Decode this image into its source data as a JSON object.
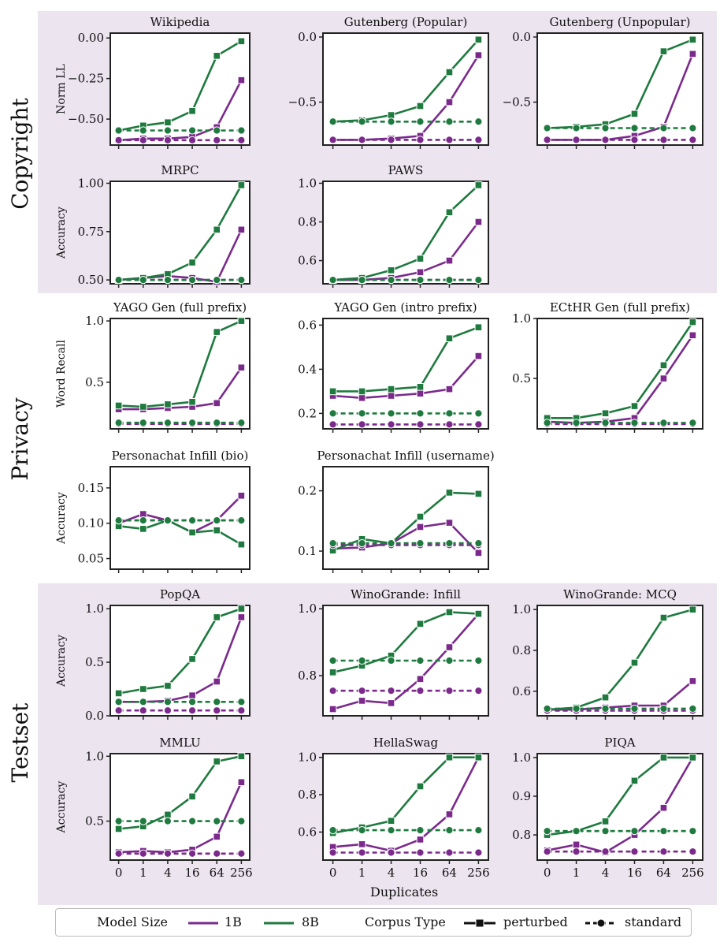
{
  "colors": {
    "1B": "#7b2a8c",
    "8B": "#1e7a3e",
    "section_bg": "#ece4ef"
  },
  "x_ticks": [
    "0",
    "1",
    "4",
    "16",
    "64",
    "256"
  ],
  "x_axis_label": "Duplicates",
  "sections": [
    "Copyright",
    "Privacy",
    "Testset"
  ],
  "legend": {
    "model_size_title": "Model Size",
    "model_sizes": [
      "1B",
      "8B"
    ],
    "corpus_type_title": "Corpus Type",
    "corpus_types": [
      "perturbed",
      "standard"
    ]
  },
  "chart_data": [
    {
      "type": "line",
      "title": "Wikipedia",
      "ylabel": "Norm LL",
      "ylim": [
        -0.66,
        0.03
      ],
      "yticks": [
        0.0,
        -0.25,
        -0.5
      ],
      "ytick_labels": [
        "0.00",
        "−0.25",
        "−0.50"
      ],
      "series": [
        {
          "name": "1B perturbed",
          "values": [
            -0.63,
            -0.62,
            -0.62,
            -0.61,
            -0.55,
            -0.26
          ]
        },
        {
          "name": "8B perturbed",
          "values": [
            -0.57,
            -0.54,
            -0.52,
            -0.45,
            -0.11,
            -0.02
          ]
        },
        {
          "name": "1B standard",
          "values": [
            -0.63,
            -0.63,
            -0.63,
            -0.63,
            -0.63,
            -0.63
          ]
        },
        {
          "name": "8B standard",
          "values": [
            -0.57,
            -0.57,
            -0.57,
            -0.57,
            -0.57,
            -0.57
          ]
        }
      ]
    },
    {
      "type": "line",
      "title": "Gutenberg (Popular)",
      "ylabel": "",
      "ylim": [
        -0.83,
        0.03
      ],
      "yticks": [
        0.0,
        -0.5
      ],
      "ytick_labels": [
        "0.0",
        "−0.5"
      ],
      "series": [
        {
          "name": "1B perturbed",
          "values": [
            -0.79,
            -0.79,
            -0.78,
            -0.76,
            -0.5,
            -0.14
          ]
        },
        {
          "name": "8B perturbed",
          "values": [
            -0.65,
            -0.64,
            -0.6,
            -0.53,
            -0.27,
            -0.02
          ]
        },
        {
          "name": "1B standard",
          "values": [
            -0.79,
            -0.79,
            -0.79,
            -0.79,
            -0.79,
            -0.79
          ]
        },
        {
          "name": "8B standard",
          "values": [
            -0.65,
            -0.65,
            -0.65,
            -0.65,
            -0.65,
            -0.65
          ]
        }
      ]
    },
    {
      "type": "line",
      "title": "Gutenberg (Unpopular)",
      "ylabel": "",
      "ylim": [
        -0.83,
        0.03
      ],
      "yticks": [
        0.0,
        -0.5
      ],
      "ytick_labels": [
        "0.0",
        "−0.5"
      ],
      "series": [
        {
          "name": "1B perturbed",
          "values": [
            -0.79,
            -0.79,
            -0.79,
            -0.76,
            -0.69,
            -0.13
          ]
        },
        {
          "name": "8B perturbed",
          "values": [
            -0.7,
            -0.69,
            -0.67,
            -0.59,
            -0.11,
            -0.02
          ]
        },
        {
          "name": "1B standard",
          "values": [
            -0.79,
            -0.79,
            -0.79,
            -0.79,
            -0.79,
            -0.79
          ]
        },
        {
          "name": "8B standard",
          "values": [
            -0.7,
            -0.7,
            -0.7,
            -0.7,
            -0.7,
            -0.7
          ]
        }
      ]
    },
    {
      "type": "line",
      "title": "MRPC",
      "ylabel": "Accuracy",
      "ylim": [
        0.48,
        1.01
      ],
      "yticks": [
        1.0,
        0.75,
        0.5
      ],
      "ytick_labels": [
        "1.00",
        "0.75",
        "0.50"
      ],
      "series": [
        {
          "name": "1B perturbed",
          "values": [
            0.5,
            0.51,
            0.52,
            0.51,
            0.49,
            0.76
          ]
        },
        {
          "name": "8B perturbed",
          "values": [
            0.5,
            0.51,
            0.53,
            0.59,
            0.76,
            0.99
          ]
        },
        {
          "name": "1B standard",
          "values": [
            0.5,
            0.5,
            0.5,
            0.5,
            0.5,
            0.5
          ]
        },
        {
          "name": "8B standard",
          "values": [
            0.5,
            0.5,
            0.5,
            0.5,
            0.5,
            0.5
          ]
        }
      ]
    },
    {
      "type": "line",
      "title": "PAWS",
      "ylabel": "",
      "ylim": [
        0.48,
        1.01
      ],
      "yticks": [
        1.0,
        0.8,
        0.6
      ],
      "ytick_labels": [
        "1.0",
        "0.8",
        "0.6"
      ],
      "series": [
        {
          "name": "1B perturbed",
          "values": [
            0.5,
            0.5,
            0.51,
            0.54,
            0.6,
            0.8
          ]
        },
        {
          "name": "8B perturbed",
          "values": [
            0.5,
            0.51,
            0.55,
            0.61,
            0.85,
            0.99
          ]
        },
        {
          "name": "1B standard",
          "values": [
            0.5,
            0.5,
            0.5,
            0.5,
            0.5,
            0.5
          ]
        },
        {
          "name": "8B standard",
          "values": [
            0.5,
            0.5,
            0.5,
            0.5,
            0.5,
            0.5
          ]
        }
      ]
    },
    {
      "type": "line",
      "title": "YAGO Gen (full prefix)",
      "ylabel": "Word Recall",
      "ylim": [
        0.12,
        1.02
      ],
      "yticks": [
        1.0,
        0.5
      ],
      "ytick_labels": [
        "1.0",
        "0.5"
      ],
      "series": [
        {
          "name": "1B perturbed",
          "values": [
            0.28,
            0.28,
            0.29,
            0.3,
            0.33,
            0.62
          ]
        },
        {
          "name": "8B perturbed",
          "values": [
            0.31,
            0.3,
            0.32,
            0.34,
            0.91,
            1.0
          ]
        },
        {
          "name": "1B standard",
          "values": [
            0.16,
            0.16,
            0.16,
            0.16,
            0.16,
            0.16
          ]
        },
        {
          "name": "8B standard",
          "values": [
            0.17,
            0.17,
            0.17,
            0.17,
            0.17,
            0.17
          ]
        }
      ]
    },
    {
      "type": "line",
      "title": "YAGO Gen (intro prefix)",
      "ylabel": "",
      "ylim": [
        0.13,
        0.63
      ],
      "yticks": [
        0.6,
        0.4,
        0.2
      ],
      "ytick_labels": [
        "0.6",
        "0.4",
        "0.2"
      ],
      "series": [
        {
          "name": "1B perturbed",
          "values": [
            0.28,
            0.27,
            0.28,
            0.29,
            0.31,
            0.46
          ]
        },
        {
          "name": "8B perturbed",
          "values": [
            0.3,
            0.3,
            0.31,
            0.32,
            0.54,
            0.59
          ]
        },
        {
          "name": "1B standard",
          "values": [
            0.15,
            0.15,
            0.15,
            0.15,
            0.15,
            0.15
          ]
        },
        {
          "name": "8B standard",
          "values": [
            0.2,
            0.2,
            0.2,
            0.2,
            0.2,
            0.2
          ]
        }
      ]
    },
    {
      "type": "line",
      "title": "ECtHR Gen (full prefix)",
      "ylabel": "",
      "ylim": [
        0.08,
        1.0
      ],
      "yticks": [
        1.0,
        0.5
      ],
      "ytick_labels": [
        "1.0",
        "0.5"
      ],
      "series": [
        {
          "name": "1B perturbed",
          "values": [
            0.14,
            0.13,
            0.14,
            0.17,
            0.5,
            0.86
          ]
        },
        {
          "name": "8B perturbed",
          "values": [
            0.17,
            0.17,
            0.21,
            0.27,
            0.61,
            0.97
          ]
        },
        {
          "name": "1B standard",
          "values": [
            0.12,
            0.12,
            0.12,
            0.12,
            0.12,
            0.12
          ]
        },
        {
          "name": "8B standard",
          "values": [
            0.13,
            0.13,
            0.13,
            0.13,
            0.13,
            0.13
          ]
        }
      ]
    },
    {
      "type": "line",
      "title": "Personachat Infill (bio)",
      "ylabel": "Accuracy",
      "ylim": [
        0.035,
        0.18
      ],
      "yticks": [
        0.15,
        0.1,
        0.05
      ],
      "ytick_labels": [
        "0.15",
        "0.10",
        "0.05"
      ],
      "series": [
        {
          "name": "1B perturbed",
          "values": [
            0.1,
            0.113,
            0.104,
            0.087,
            0.104,
            0.139
          ]
        },
        {
          "name": "8B perturbed",
          "values": [
            0.096,
            0.092,
            0.104,
            0.087,
            0.09,
            0.07
          ]
        },
        {
          "name": "1B standard",
          "values": [
            0.104,
            0.104,
            0.104,
            0.104,
            0.104,
            0.104
          ]
        },
        {
          "name": "8B standard",
          "values": [
            0.104,
            0.104,
            0.104,
            0.104,
            0.104,
            0.104
          ]
        }
      ]
    },
    {
      "type": "line",
      "title": "Personachat Infill (username)",
      "ylabel": "",
      "ylim": [
        0.07,
        0.24
      ],
      "yticks": [
        0.2,
        0.1
      ],
      "ytick_labels": [
        "0.2",
        "0.1"
      ],
      "series": [
        {
          "name": "1B perturbed",
          "values": [
            0.104,
            0.106,
            0.113,
            0.14,
            0.147,
            0.097
          ]
        },
        {
          "name": "8B perturbed",
          "values": [
            0.101,
            0.12,
            0.113,
            0.157,
            0.197,
            0.195
          ]
        },
        {
          "name": "1B standard",
          "values": [
            0.11,
            0.11,
            0.11,
            0.11,
            0.11,
            0.11
          ]
        },
        {
          "name": "8B standard",
          "values": [
            0.113,
            0.113,
            0.113,
            0.113,
            0.113,
            0.113
          ]
        }
      ]
    },
    {
      "type": "line",
      "title": "PopQA",
      "ylabel": "Accuracy",
      "ylim": [
        0.0,
        1.03
      ],
      "yticks": [
        1.0,
        0.5,
        0.0
      ],
      "ytick_labels": [
        "1.0",
        "0.5",
        "0.0"
      ],
      "series": [
        {
          "name": "1B perturbed",
          "values": [
            0.13,
            0.13,
            0.14,
            0.19,
            0.32,
            0.92
          ]
        },
        {
          "name": "8B perturbed",
          "values": [
            0.21,
            0.25,
            0.28,
            0.53,
            0.92,
            1.0
          ]
        },
        {
          "name": "1B standard",
          "values": [
            0.05,
            0.05,
            0.05,
            0.05,
            0.05,
            0.05
          ]
        },
        {
          "name": "8B standard",
          "values": [
            0.13,
            0.13,
            0.13,
            0.13,
            0.13,
            0.13
          ]
        }
      ]
    },
    {
      "type": "line",
      "title": "WinoGrande: Infill",
      "ylabel": "",
      "ylim": [
        0.68,
        1.01
      ],
      "yticks": [
        1.0,
        0.8
      ],
      "ytick_labels": [
        "1.0",
        "0.8"
      ],
      "series": [
        {
          "name": "1B perturbed",
          "values": [
            0.7,
            0.725,
            0.718,
            0.79,
            0.885,
            0.985
          ]
        },
        {
          "name": "8B perturbed",
          "values": [
            0.81,
            0.83,
            0.86,
            0.955,
            0.99,
            0.985
          ]
        },
        {
          "name": "1B standard",
          "values": [
            0.755,
            0.755,
            0.755,
            0.755,
            0.755,
            0.755
          ]
        },
        {
          "name": "8B standard",
          "values": [
            0.845,
            0.845,
            0.845,
            0.845,
            0.845,
            0.845
          ]
        }
      ]
    },
    {
      "type": "line",
      "title": "WinoGrande: MCQ",
      "ylabel": "",
      "ylim": [
        0.48,
        1.02
      ],
      "yticks": [
        1.0,
        0.8,
        0.6
      ],
      "ytick_labels": [
        "1.0",
        "0.8",
        "0.6"
      ],
      "series": [
        {
          "name": "1B perturbed",
          "values": [
            0.51,
            0.51,
            0.52,
            0.53,
            0.53,
            0.65
          ]
        },
        {
          "name": "8B perturbed",
          "values": [
            0.51,
            0.52,
            0.57,
            0.74,
            0.96,
            1.0
          ]
        },
        {
          "name": "1B standard",
          "values": [
            0.505,
            0.505,
            0.505,
            0.505,
            0.505,
            0.505
          ]
        },
        {
          "name": "8B standard",
          "values": [
            0.515,
            0.515,
            0.515,
            0.515,
            0.515,
            0.515
          ]
        }
      ]
    },
    {
      "type": "line",
      "title": "MMLU",
      "ylabel": "Accuracy",
      "ylim": [
        0.2,
        1.02
      ],
      "yticks": [
        1.0,
        0.5
      ],
      "ytick_labels": [
        "1.0",
        "0.5"
      ],
      "series": [
        {
          "name": "1B perturbed",
          "values": [
            0.26,
            0.27,
            0.26,
            0.28,
            0.38,
            0.8
          ]
        },
        {
          "name": "8B perturbed",
          "values": [
            0.44,
            0.46,
            0.55,
            0.69,
            0.96,
            1.0
          ]
        },
        {
          "name": "1B standard",
          "values": [
            0.25,
            0.25,
            0.25,
            0.25,
            0.25,
            0.25
          ]
        },
        {
          "name": "8B standard",
          "values": [
            0.5,
            0.5,
            0.5,
            0.5,
            0.5,
            0.5
          ]
        }
      ]
    },
    {
      "type": "line",
      "title": "HellaSwag",
      "ylabel": "",
      "ylim": [
        0.45,
        1.02
      ],
      "yticks": [
        1.0,
        0.8,
        0.6
      ],
      "ytick_labels": [
        "1.0",
        "0.8",
        "0.6"
      ],
      "series": [
        {
          "name": "1B perturbed",
          "values": [
            0.52,
            0.535,
            0.5,
            0.56,
            0.695,
            1.0
          ]
        },
        {
          "name": "8B perturbed",
          "values": [
            0.595,
            0.625,
            0.66,
            0.845,
            1.0,
            1.0
          ]
        },
        {
          "name": "1B standard",
          "values": [
            0.49,
            0.49,
            0.49,
            0.49,
            0.49,
            0.49
          ]
        },
        {
          "name": "8B standard",
          "values": [
            0.61,
            0.61,
            0.61,
            0.61,
            0.61,
            0.61
          ]
        }
      ]
    },
    {
      "type": "line",
      "title": "PIQA",
      "ylabel": "",
      "ylim": [
        0.735,
        1.01
      ],
      "yticks": [
        1.0,
        0.9,
        0.8
      ],
      "ytick_labels": [
        "1.0",
        "0.9",
        "0.8"
      ],
      "series": [
        {
          "name": "1B perturbed",
          "values": [
            0.76,
            0.775,
            0.755,
            0.8,
            0.87,
            1.0
          ]
        },
        {
          "name": "8B perturbed",
          "values": [
            0.8,
            0.81,
            0.835,
            0.94,
            1.0,
            1.0
          ]
        },
        {
          "name": "1B standard",
          "values": [
            0.757,
            0.757,
            0.757,
            0.757,
            0.757,
            0.757
          ]
        },
        {
          "name": "8B standard",
          "values": [
            0.81,
            0.81,
            0.81,
            0.81,
            0.81,
            0.81
          ]
        }
      ]
    }
  ]
}
